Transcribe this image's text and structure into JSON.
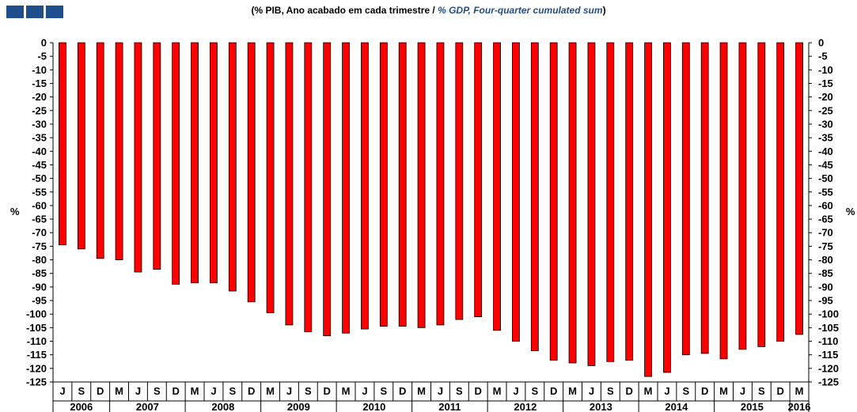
{
  "logo": {
    "color": "#1f4e8c",
    "boxes": 3
  },
  "title": {
    "open": "(",
    "pt": "% PIB, Ano acabado em cada trimestre / ",
    "en": "% GDP, Four-quarter cumulated sum",
    "close": ")"
  },
  "chart_data": {
    "type": "bar",
    "bar_color": "#ff0000",
    "bar_edge_color": "#000000",
    "ylabel": "%",
    "ylim": [
      -125,
      0
    ],
    "ytick_step": 5,
    "yticks": [
      0,
      -5,
      -10,
      -15,
      -20,
      -25,
      -30,
      -35,
      -40,
      -45,
      -50,
      -55,
      -60,
      -65,
      -70,
      -75,
      -80,
      -85,
      -90,
      -95,
      -100,
      -105,
      -110,
      -115,
      -120,
      -125
    ],
    "grid": false,
    "legend": "none",
    "categories": [
      "J",
      "S",
      "D",
      "M",
      "J",
      "S",
      "D",
      "M",
      "J",
      "S",
      "D",
      "M",
      "J",
      "S",
      "D",
      "M",
      "J",
      "S",
      "D",
      "M",
      "J",
      "S",
      "D",
      "M",
      "J",
      "S",
      "D",
      "M",
      "J",
      "S",
      "D",
      "M",
      "J",
      "S",
      "D",
      "M",
      "J",
      "S",
      "D",
      "M"
    ],
    "values": [
      -74.5,
      -76,
      -79.5,
      -80,
      -84.5,
      -83.5,
      -89,
      -88.5,
      -88.5,
      -91.5,
      -95.5,
      -99.5,
      -104,
      -106.5,
      -108,
      -107,
      -105.5,
      -104.5,
      -104.5,
      -105,
      -104,
      -102,
      -101,
      -106,
      -110,
      -113.5,
      -117,
      -118,
      -119,
      -117.5,
      -117,
      -123,
      -121.5,
      -115,
      -114.5,
      -116.5,
      -113,
      -112,
      -110,
      -107.5
    ],
    "years": [
      {
        "label": "2006",
        "start": 0,
        "end": 2
      },
      {
        "label": "2007",
        "start": 3,
        "end": 6
      },
      {
        "label": "2008",
        "start": 7,
        "end": 10
      },
      {
        "label": "2009",
        "start": 11,
        "end": 14
      },
      {
        "label": "2010",
        "start": 15,
        "end": 18
      },
      {
        "label": "2011",
        "start": 19,
        "end": 22
      },
      {
        "label": "2012",
        "start": 23,
        "end": 26
      },
      {
        "label": "2013",
        "start": 27,
        "end": 30
      },
      {
        "label": "2014",
        "start": 31,
        "end": 34
      },
      {
        "label": "2015",
        "start": 35,
        "end": 38
      },
      {
        "label": "2016",
        "start": 39,
        "end": 39
      }
    ]
  }
}
